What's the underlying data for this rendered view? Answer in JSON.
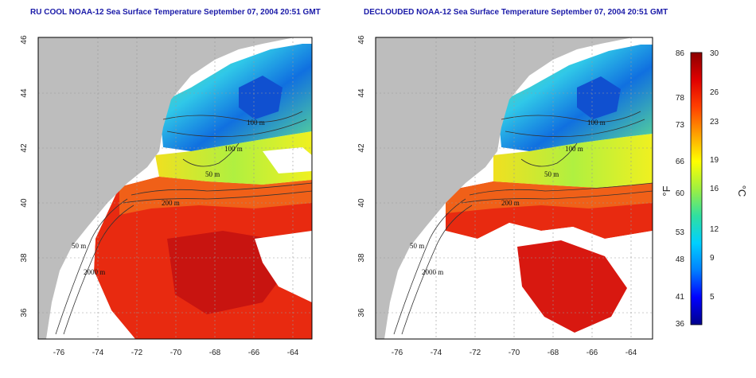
{
  "panels": [
    {
      "id": "ru-cool",
      "title": "RU COOL NOAA-12 Sea Surface Temperature September 07, 2004 20:51 GMT",
      "lon_ticks": [
        "-76",
        "-74",
        "-72",
        "-70",
        "-68",
        "-66",
        "-64"
      ],
      "lat_ticks": [
        "36",
        "38",
        "40",
        "42",
        "44",
        "46"
      ],
      "contour_labels": [
        "100 m",
        "100 m",
        "50 m",
        "200 m",
        "50 m",
        "2000 m"
      ]
    },
    {
      "id": "declouded",
      "title": "DECLOUDED NOAA-12 Sea Surface Temperature September 07, 2004 20:51 GMT",
      "lon_ticks": [
        "-76",
        "-74",
        "-72",
        "-70",
        "-68",
        "-66",
        "-64"
      ],
      "lat_ticks": [
        "36",
        "38",
        "40",
        "42",
        "44",
        "46"
      ],
      "contour_labels": [
        "100 m",
        "100 m",
        "50 m",
        "200 m",
        "50 m",
        "2000 m"
      ]
    }
  ],
  "colorbar": {
    "fahrenheit_unit": "°F",
    "celsius_unit": "°C",
    "fahrenheit_ticks": [
      "86",
      "78",
      "73",
      "66",
      "60",
      "53",
      "48",
      "41",
      "36"
    ],
    "celsius_ticks": [
      "30",
      "26",
      "23",
      "19",
      "16",
      "12",
      "9",
      "5"
    ],
    "colors": [
      "#00008b",
      "#0000ff",
      "#0080ff",
      "#00d0ff",
      "#30e0a0",
      "#a0f040",
      "#ffff00",
      "#ffa000",
      "#ff4000",
      "#e00000",
      "#8b0000"
    ]
  },
  "colors": {
    "land": "#bdbdbd",
    "cloud": "#ffffff",
    "title": "#1a1aa8",
    "warm": "#e82010",
    "cool": "#30c0e0"
  }
}
